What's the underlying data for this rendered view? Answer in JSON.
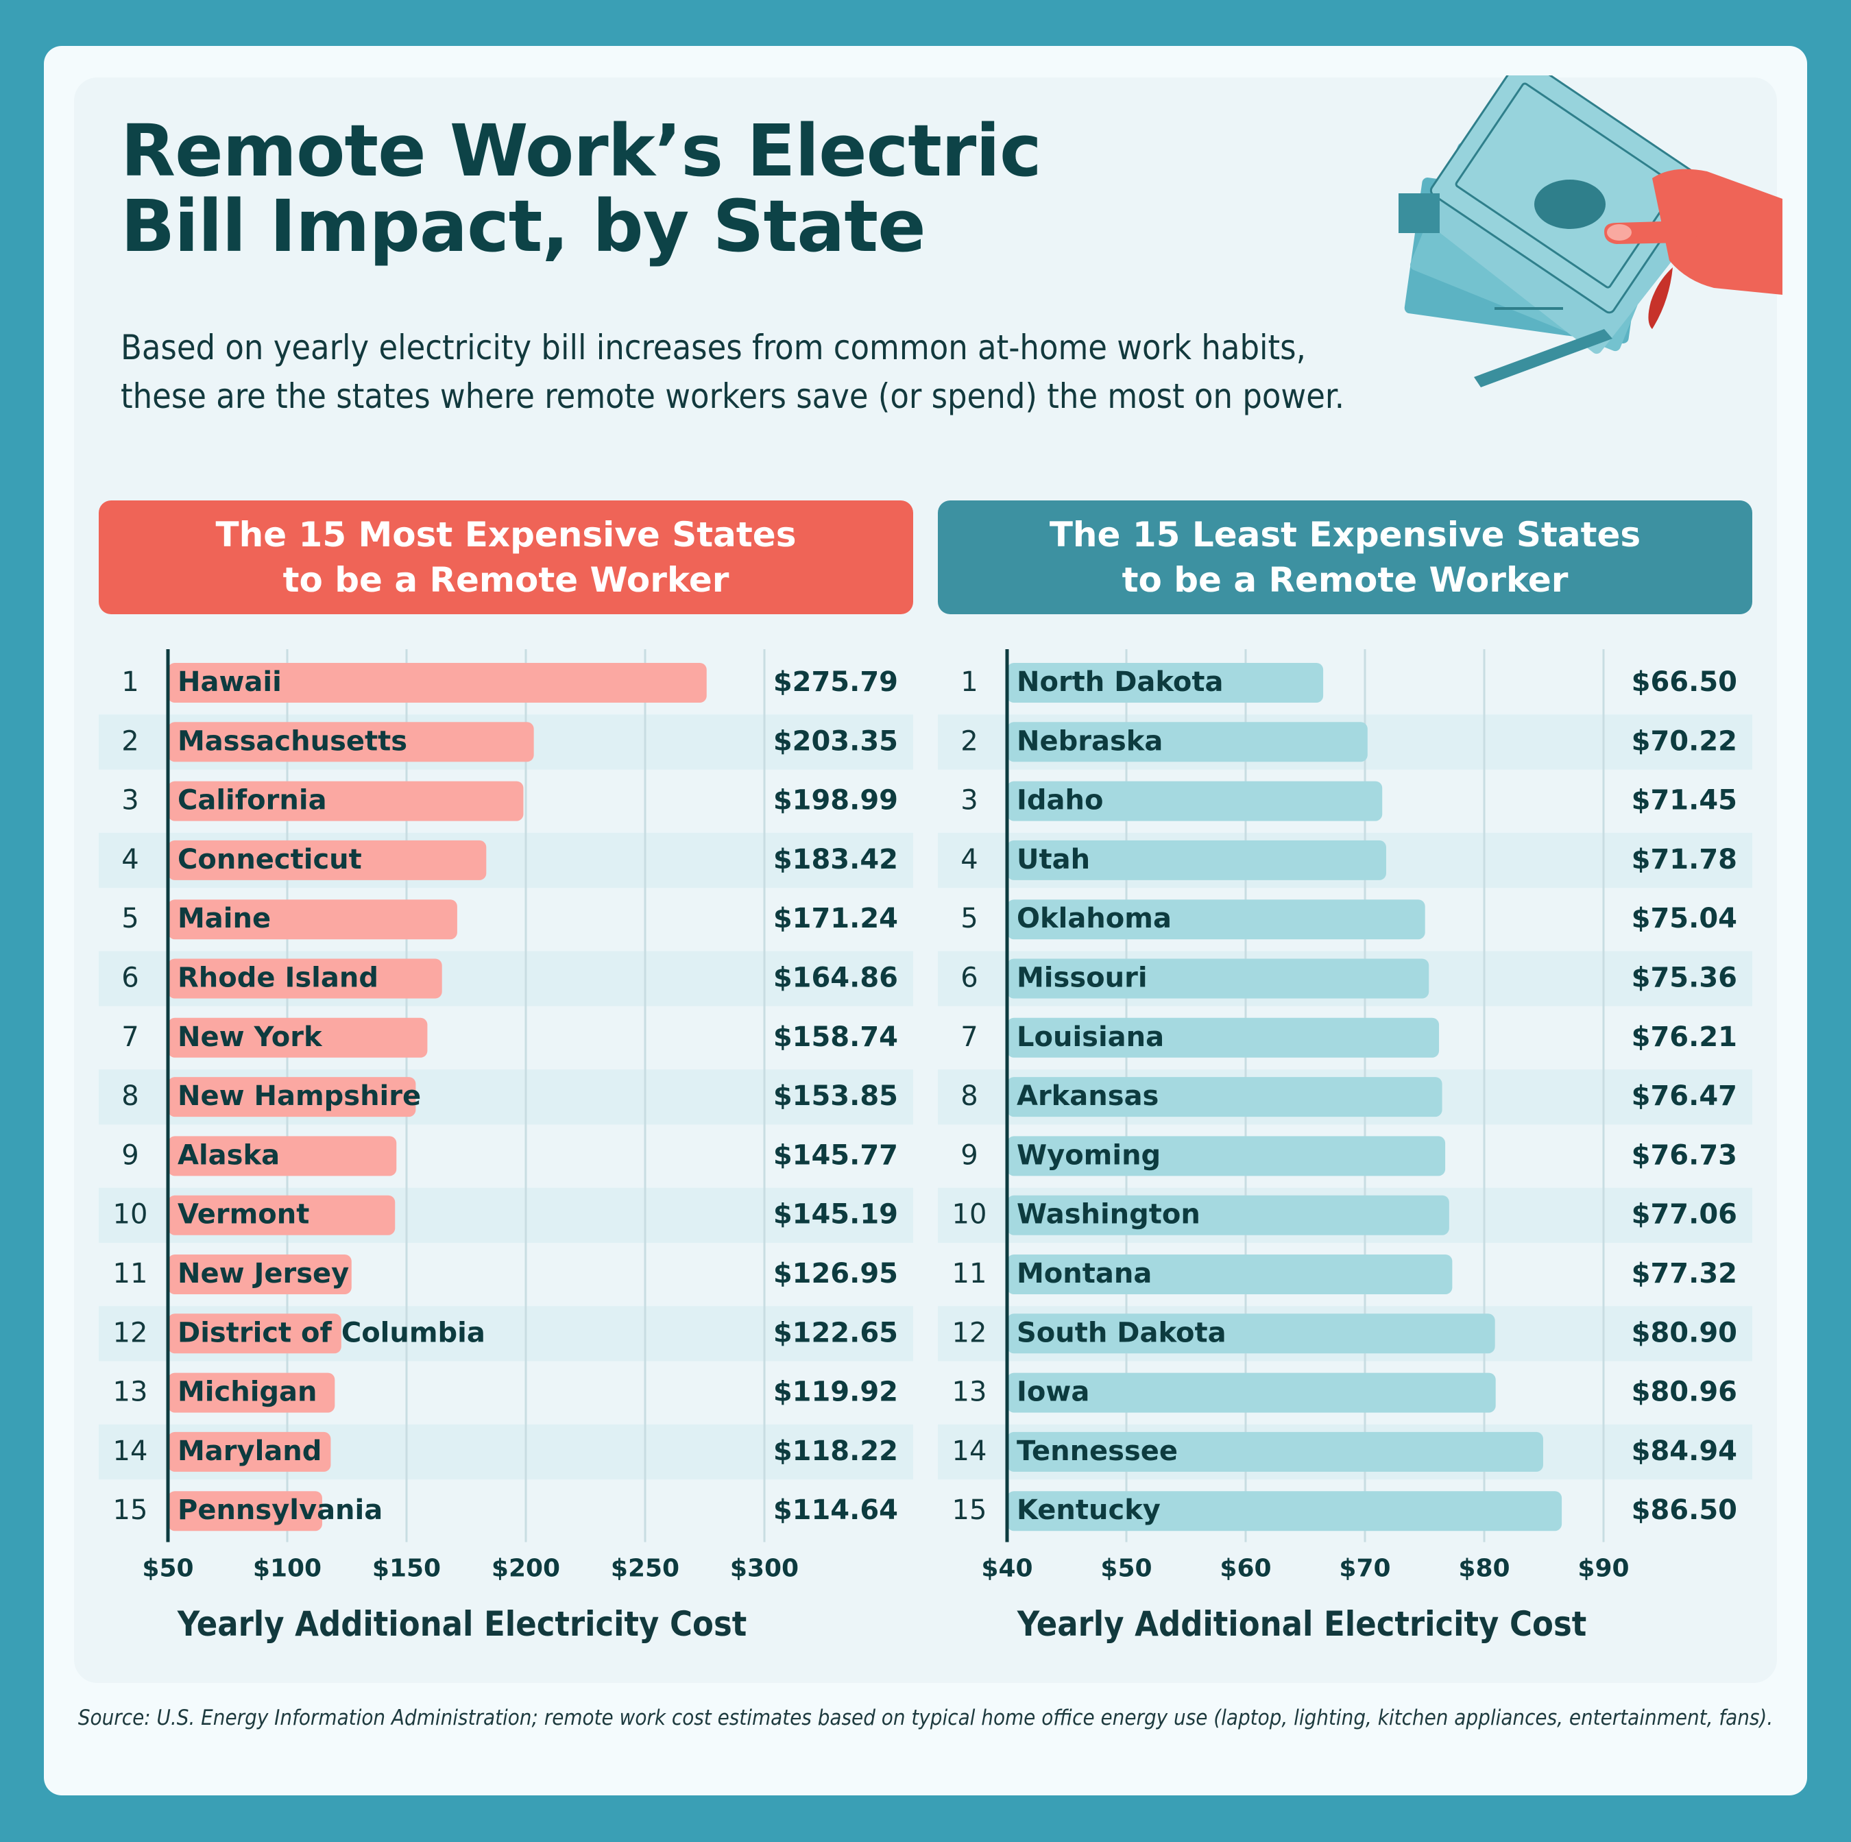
{
  "header": {
    "title_line1": "Remote Work’s Electric",
    "title_line2": "Bill Impact, by State",
    "subtitle_line1": "Based on yearly electricity bill increases from common at-home work habits,",
    "subtitle_line2": "these are the states where remote workers save (or spend) the most on power."
  },
  "panels": {
    "left_title_line1": "The 15 Most Expensive States",
    "left_title_line2": "to be a Remote Worker",
    "right_title_line1": "The 15 Least Expensive States",
    "right_title_line2": "to be a Remote Worker"
  },
  "colors": {
    "background": "#3a9fb5",
    "title": "#0d4347",
    "left_header": "#ef6457",
    "left_bar": "#fba8a2",
    "right_header": "#3d91a1",
    "right_bar": "#a5d9e0",
    "stripe": "#dff0f4"
  },
  "chart_data": [
    {
      "type": "bar",
      "orientation": "horizontal",
      "title": "The 15 Most Expensive States to be a Remote Worker",
      "xlabel": "Yearly Additional Electricity Cost",
      "xlim": [
        50,
        300
      ],
      "ticks": [
        50,
        100,
        150,
        200,
        250,
        300
      ],
      "tick_labels": [
        "$50",
        "$100",
        "$150",
        "$200",
        "$250",
        "$300"
      ],
      "grid": true,
      "ranks": [
        "1",
        "2",
        "3",
        "4",
        "5",
        "6",
        "7",
        "8",
        "9",
        "10",
        "11",
        "12",
        "13",
        "14",
        "15"
      ],
      "categories": [
        "Hawaii",
        "Massachusetts",
        "California",
        "Connecticut",
        "Maine",
        "Rhode Island",
        "New York",
        "New Hampshire",
        "Alaska",
        "Vermont",
        "New Jersey",
        "District of Columbia",
        "Michigan",
        "Maryland",
        "Pennsylvania"
      ],
      "values": [
        275.79,
        203.35,
        198.99,
        183.42,
        171.24,
        164.86,
        158.74,
        153.85,
        145.77,
        145.19,
        126.95,
        122.65,
        119.92,
        118.22,
        114.64
      ],
      "value_labels": [
        "$275.79",
        "$203.35",
        "$198.99",
        "$183.42",
        "$171.24",
        "$164.86",
        "$158.74",
        "$153.85",
        "$145.77",
        "$145.19",
        "$126.95",
        "$122.65",
        "$119.92",
        "$118.22",
        "$114.64"
      ]
    },
    {
      "type": "bar",
      "orientation": "horizontal",
      "title": "The 15 Least Expensive States to be a Remote Worker",
      "xlabel": "Yearly Additional Electricity Cost",
      "xlim": [
        40,
        90
      ],
      "ticks": [
        40,
        50,
        60,
        70,
        80,
        90
      ],
      "tick_labels": [
        "$40",
        "$50",
        "$60",
        "$70",
        "$80",
        "$90"
      ],
      "grid": true,
      "ranks": [
        "1",
        "2",
        "3",
        "4",
        "5",
        "6",
        "7",
        "8",
        "9",
        "10",
        "11",
        "12",
        "13",
        "14",
        "15"
      ],
      "categories": [
        "North Dakota",
        "Nebraska",
        "Idaho",
        "Utah",
        "Oklahoma",
        "Missouri",
        "Louisiana",
        "Arkansas",
        "Wyoming",
        "Washington",
        "Montana",
        "South Dakota",
        "Iowa",
        "Tennessee",
        "Kentucky"
      ],
      "values": [
        66.5,
        70.22,
        71.45,
        71.78,
        75.04,
        75.36,
        76.21,
        76.47,
        76.73,
        77.06,
        77.32,
        80.9,
        80.96,
        84.94,
        86.5
      ],
      "value_labels": [
        "$66.50",
        "$70.22",
        "$71.45",
        "$71.78",
        "$75.04",
        "$75.36",
        "$76.21",
        "$76.47",
        "$76.73",
        "$77.06",
        "$77.32",
        "$80.90",
        "$80.96",
        "$84.94",
        "$86.50"
      ]
    }
  ],
  "footer": {
    "source": "Source: U.S. Energy Information Administration; remote work cost estimates based on typical home office energy use (laptop, lighting, kitchen appliances, entertainment, fans)."
  }
}
